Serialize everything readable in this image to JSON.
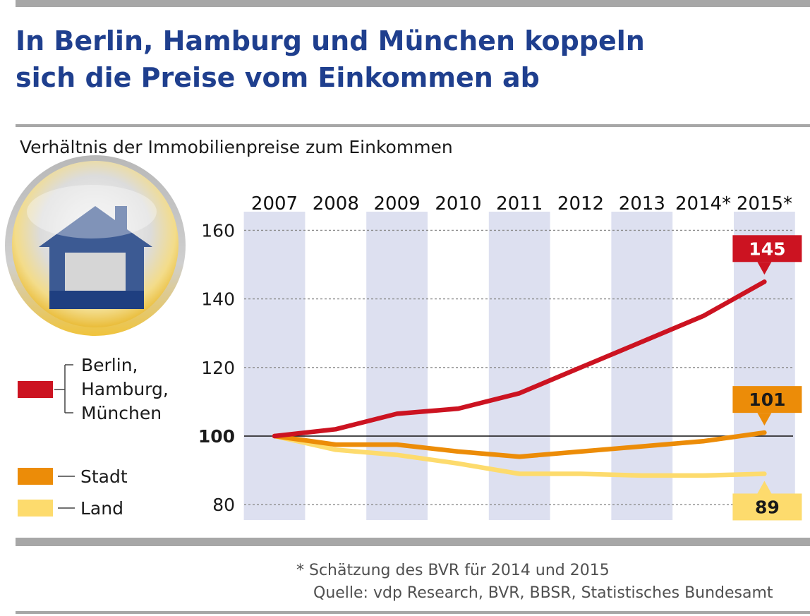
{
  "title_lines": [
    "In Berlin, Hamburg und München koppeln",
    "sich die Preise vom Einkommen ab"
  ],
  "subtitle": "Verhältnis der Immobilienpreise zum Einkommen",
  "footnote": "* Schätzung des BVR für 2014 und 2015",
  "source": "Quelle: vdp Research, BVR, BBSR, Statistisches Bundesamt",
  "colors": {
    "title": "#1f3f8e",
    "band": "#dde0f0",
    "house": "#3c5a93",
    "rule": "#a7a7a7"
  },
  "icon": "house-icon",
  "chart_data": {
    "type": "line",
    "title": "In Berlin, Hamburg und München koppeln sich die Preise vom Einkommen ab",
    "ylabel": "Verhältnis der Immobilienpreise zum Einkommen",
    "categories": [
      "2007",
      "2008",
      "2009",
      "2010",
      "2011",
      "2012",
      "2013",
      "2014*",
      "2015*"
    ],
    "ylim": [
      78,
      166
    ],
    "yticks": [
      "80",
      "100",
      "120",
      "140",
      "160"
    ],
    "grid": true,
    "legend": "left",
    "series": [
      {
        "name": "Berlin, Hamburg, München",
        "legend_lines": [
          "Berlin,",
          "Hamburg,",
          "München"
        ],
        "color": "#cc1321",
        "values": [
          100,
          102,
          106.5,
          108,
          112.5,
          120,
          127.5,
          135,
          145
        ],
        "end_label": "145"
      },
      {
        "name": "Stadt",
        "legend_lines": [
          "Stadt"
        ],
        "color": "#ec8c08",
        "values": [
          100,
          97.5,
          97.5,
          95.5,
          94,
          95.5,
          97,
          98.5,
          101
        ],
        "end_label": "101"
      },
      {
        "name": "Land",
        "legend_lines": [
          "Land"
        ],
        "color": "#fddb6d",
        "values": [
          100,
          96,
          94.5,
          92,
          89,
          89,
          88.5,
          88.5,
          89
        ],
        "end_label": "89"
      }
    ]
  }
}
